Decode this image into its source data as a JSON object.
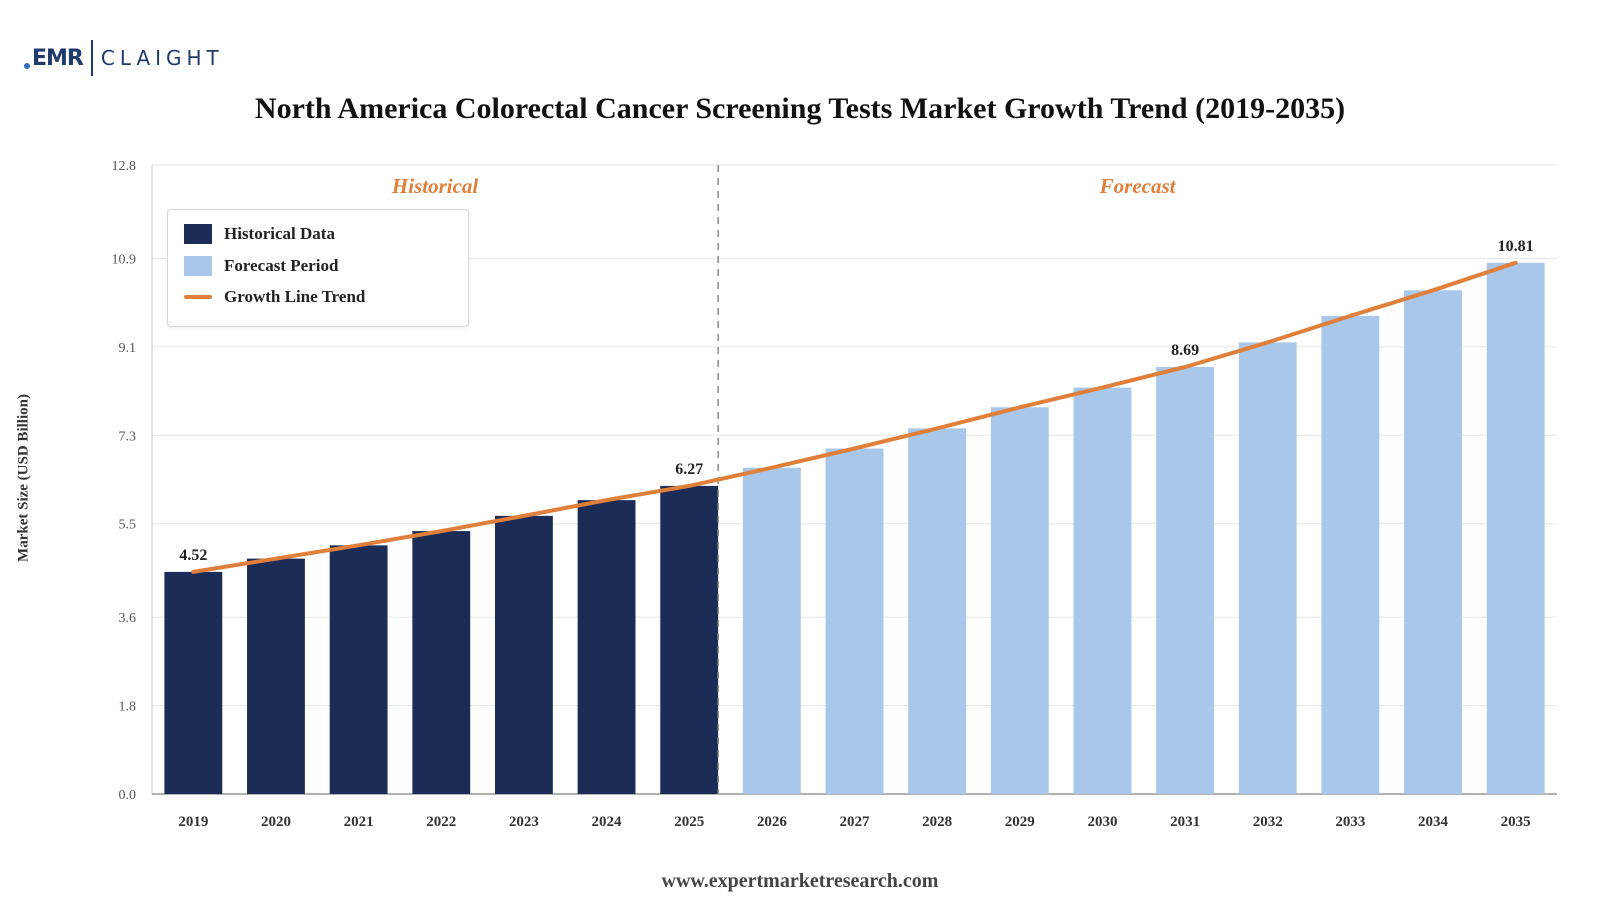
{
  "logo": {
    "left": "EMR",
    "right": "CLAIGHT"
  },
  "footer": "www.expertmarketresearch.com",
  "colors": {
    "historical": "#1b2d57",
    "forecast": "#a8c7ea",
    "trend": "#e07f3a",
    "section_label": "#e07f3a",
    "grid": "#e6e6e6"
  },
  "chart_data": {
    "type": "bar",
    "title": "North America Colorectal Cancer Screening Tests Market Growth Trend (2019-2035)",
    "ylabel": "Market Size (USD Billion)",
    "xlabel": "",
    "ylim": [
      0,
      12.8
    ],
    "yticks": [
      "0.0",
      "1.8",
      "3.6",
      "5.5",
      "7.3",
      "9.1",
      "10.9",
      "12.8"
    ],
    "grid": true,
    "legend_position": "top-left",
    "section_labels": {
      "historical": "Historical",
      "forecast": "Forecast"
    },
    "categories": [
      "2019",
      "2020",
      "2021",
      "2022",
      "2023",
      "2024",
      "2025",
      "2026",
      "2027",
      "2028",
      "2029",
      "2030",
      "2031",
      "2032",
      "2033",
      "2034",
      "2035"
    ],
    "series": [
      {
        "name": "Historical Data",
        "values": [
          4.52,
          4.79,
          5.06,
          5.35,
          5.66,
          5.98,
          6.27,
          null,
          null,
          null,
          null,
          null,
          null,
          null,
          null,
          null,
          null
        ]
      },
      {
        "name": "Forecast Period",
        "values": [
          null,
          null,
          null,
          null,
          null,
          null,
          null,
          6.64,
          7.03,
          7.44,
          7.87,
          8.27,
          8.69,
          9.19,
          9.73,
          10.25,
          10.81
        ]
      },
      {
        "name": "Growth Line Trend",
        "type": "line",
        "values": [
          4.52,
          4.79,
          5.06,
          5.35,
          5.66,
          5.98,
          6.27,
          6.64,
          7.03,
          7.44,
          7.87,
          8.27,
          8.69,
          9.19,
          9.73,
          10.25,
          10.81
        ]
      }
    ],
    "data_labels": [
      {
        "category": "2019",
        "text": "4.52"
      },
      {
        "category": "2025",
        "text": "6.27"
      },
      {
        "category": "2031",
        "text": "8.69"
      },
      {
        "category": "2035",
        "text": "10.81"
      }
    ],
    "split_after": "2025"
  }
}
